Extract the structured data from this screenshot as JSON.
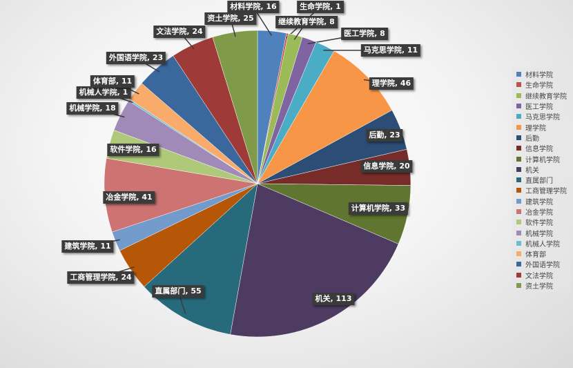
{
  "chart_data": {
    "type": "pie",
    "categories": [
      "材料学院",
      "生命学院",
      "继续教育学院",
      "医工学院",
      "马克思学院",
      "理学院",
      "后勤",
      "信息学院",
      "计算机学院",
      "机关",
      "直属部门",
      "工商管理学院",
      "建筑学院",
      "冶金学院",
      "软件学院",
      "机械学院",
      "机械人学院",
      "体育部",
      "外国语学院",
      "文法学院",
      "资土学院"
    ],
    "values": [
      16,
      1,
      8,
      8,
      11,
      46,
      23,
      20,
      33,
      113,
      55,
      24,
      11,
      41,
      16,
      18,
      1,
      11,
      23,
      24,
      25
    ],
    "colors": [
      "#4F81BD",
      "#C0504D",
      "#9BBB59",
      "#8064A2",
      "#4BACC6",
      "#F79646",
      "#2C4D75",
      "#772C2A",
      "#5F7530",
      "#4D3B62",
      "#276A7C",
      "#B65708",
      "#729ACA",
      "#CD7371",
      "#AFC97A",
      "#A08AB8",
      "#6FBDD1",
      "#F9AB6B",
      "#3A679C",
      "#9E3B38",
      "#7F9A48"
    ],
    "data_labels": [
      "材料学院, 16",
      "生命学院, 1",
      "继续教育学院, 8",
      "医工学院, 8",
      "马克思学院, 11",
      "理学院, 46",
      "后勤, 23",
      "信息学院, 20",
      "计算机学院, 33",
      "机关, 113",
      "直属部门, 55",
      "工商管理学院, 24",
      "建筑学院, 11",
      "冶金学院, 41",
      "软件学院, 16",
      "机械学院, 18",
      "机械人学院, 1",
      "体育部, 11",
      "外国语学院, 23",
      "文法学院, 24",
      "资土学院, 25"
    ],
    "legend_position": "right",
    "start": "top, clockwise"
  }
}
